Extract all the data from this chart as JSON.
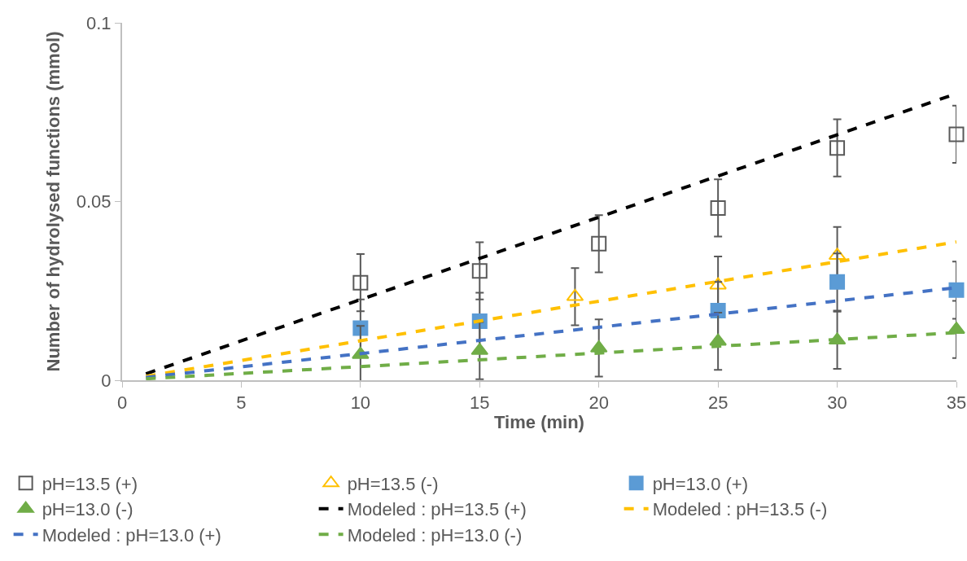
{
  "chart_data": {
    "type": "scatter",
    "xlabel": "Time (min)",
    "ylabel": "Number of hydrolysed functions (mmol)",
    "xlim": [
      0,
      35
    ],
    "xticks": [
      0,
      5,
      10,
      15,
      20,
      25,
      30,
      35
    ],
    "ylim": [
      0,
      0.1
    ],
    "yticks": [
      0,
      0.05,
      0.1
    ],
    "grid": false,
    "legend": "bottom",
    "series": [
      {
        "name": "pH=13.5 (+)",
        "marker": "square-open",
        "color": "#595959",
        "x": [
          10,
          15,
          20,
          25,
          30,
          35
        ],
        "values": [
          0.0273,
          0.0306,
          0.0382,
          0.0482,
          0.065,
          0.0688
        ],
        "errors": [
          0.008,
          0.008,
          0.008,
          0.008,
          0.008,
          0.008
        ]
      },
      {
        "name": "pH=13.5 (-)",
        "marker": "triangle-open",
        "color": "#ffc000",
        "x": [
          19,
          25,
          30
        ],
        "values": [
          0.0234,
          0.0266,
          0.0349
        ],
        "errors": [
          0.008,
          0.008,
          0.008
        ]
      },
      {
        "name": "pH=13.0 (+)",
        "marker": "square",
        "color": "#5b9bd5",
        "x": [
          10,
          15,
          25,
          30,
          35
        ],
        "values": [
          0.0146,
          0.0165,
          0.0195,
          0.0275,
          0.0252
        ],
        "errors": [
          0.008,
          0.008,
          0.008,
          0.008,
          0.008
        ]
      },
      {
        "name": "pH=13.0 (-)",
        "marker": "triangle",
        "color": "#70ad47",
        "x": [
          10,
          15,
          20,
          25,
          30,
          35
        ],
        "values": [
          0.0072,
          0.0083,
          0.009,
          0.0109,
          0.0112,
          0.0142
        ],
        "errors": [
          0.008,
          0.008,
          0.008,
          0.008,
          0.008,
          0.008
        ]
      },
      {
        "name": "Modeled : pH=13.5 (+)",
        "type": "line",
        "marker": "none",
        "line_style": "dashed",
        "color": "#000000",
        "x": [
          1,
          35
        ],
        "values": [
          0.0018,
          0.0802
        ]
      },
      {
        "name": "Modeled : pH=13.5 (-)",
        "type": "line",
        "marker": "none",
        "line_style": "dashed",
        "color": "#ffc000",
        "x": [
          1,
          35
        ],
        "values": [
          0.0011,
          0.0387
        ]
      },
      {
        "name": "Modeled : pH=13.0 (+)",
        "type": "line",
        "marker": "none",
        "line_style": "dashed",
        "color": "#4472c4",
        "x": [
          1,
          35
        ],
        "values": [
          0.0008,
          0.0259
        ]
      },
      {
        "name": "Modeled : pH=13.0 (-)",
        "type": "line",
        "marker": "none",
        "line_style": "dashed",
        "color": "#70ad47",
        "x": [
          1,
          35
        ],
        "values": [
          0.0004,
          0.0133
        ]
      }
    ]
  }
}
